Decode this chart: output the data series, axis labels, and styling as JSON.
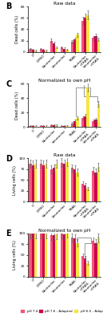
{
  "categories": [
    "0",
    "DMSO",
    "Navitoclax",
    "Venetoclax",
    "TRAIL",
    "Navitoclax\n+TRAIL",
    "Venetoclax\n+TRAIL"
  ],
  "colors": {
    "pH74": "#F4547A",
    "pH76_adapted": "#C8004A",
    "pH65_adapted": "#F5E642"
  },
  "panel_B": {
    "title": "Raw data",
    "ylabel": "Dead cells (%)",
    "ylim": [
      0,
      80
    ],
    "yticks": [
      0,
      20,
      40,
      60,
      80
    ],
    "pH74": [
      5,
      5,
      20,
      8,
      18,
      55,
      25
    ],
    "pH76_adapted": [
      4,
      4,
      15,
      6,
      22,
      60,
      28
    ],
    "pH65_adapted": [
      3,
      3,
      8,
      4,
      30,
      65,
      22
    ]
  },
  "panel_C": {
    "title": "Normalized to own pH",
    "ylabel": "Dead cells (%)",
    "ylim": [
      0,
      60
    ],
    "yticks": [
      0,
      20,
      40,
      60
    ],
    "pH74": [
      1,
      1,
      2,
      1,
      5,
      12,
      8
    ],
    "pH76_adapted": [
      1,
      1,
      2,
      1,
      8,
      15,
      10
    ],
    "pH65_adapted": [
      1,
      1,
      2,
      1,
      12,
      55,
      32
    ]
  },
  "panel_D": {
    "title": "Raw data",
    "ylabel": "Living cells (%)",
    "ylim": [
      0,
      100
    ],
    "yticks": [
      0,
      25,
      50,
      75,
      100
    ],
    "pH74": [
      88,
      88,
      75,
      90,
      78,
      42,
      72
    ],
    "pH76_adapted": [
      85,
      85,
      78,
      88,
      75,
      38,
      68
    ],
    "pH65_adapted": [
      88,
      88,
      88,
      92,
      68,
      30,
      80
    ]
  },
  "panel_E": {
    "title": "Normalized to own pH",
    "ylabel": "Living cells (%)",
    "ylim": [
      0,
      100
    ],
    "yticks": [
      0,
      25,
      50,
      75,
      100
    ],
    "pH74": [
      100,
      100,
      95,
      100,
      90,
      48,
      82
    ],
    "pH76_adapted": [
      100,
      100,
      95,
      98,
      88,
      42,
      78
    ],
    "pH65_adapted": [
      100,
      100,
      98,
      102,
      78,
      32,
      90
    ]
  },
  "legend_labels": [
    "pH 7.4",
    "pH 7.6 - Adapted",
    "pH 6.5 - Adapted"
  ],
  "bar_width": 0.25
}
